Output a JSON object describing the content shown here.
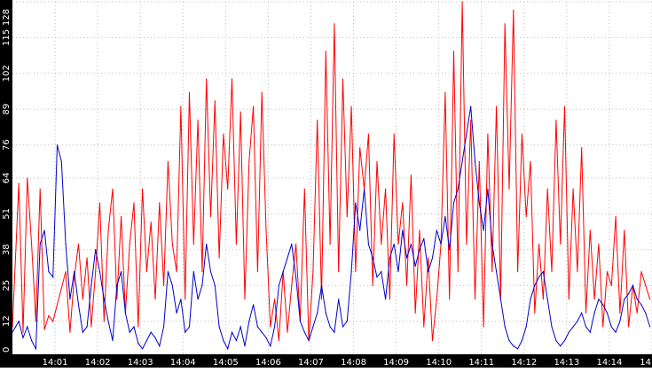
{
  "chart_data": {
    "type": "line",
    "title": "",
    "xlabel": "",
    "ylabel": "",
    "ylim": [
      0,
      128
    ],
    "grid": true,
    "legend": "none",
    "x_ticks": [
      "14:01",
      "14:02",
      "14:03",
      "14:04",
      "14:05",
      "14:06",
      "14:07",
      "14:08",
      "14:09",
      "14:10",
      "14:11",
      "14:12",
      "14:13",
      "14:14",
      "14"
    ],
    "y_ticks": [
      "0",
      "12",
      "25",
      "38",
      "51",
      "64",
      "76",
      "89",
      "102",
      "115",
      "128"
    ],
    "x_range_minutes": [
      0,
      15
    ],
    "series": [
      {
        "color": "#ff0000",
        "x_minutes": [
          0.0,
          0.15,
          0.25,
          0.35,
          0.45,
          0.55,
          0.65,
          0.75,
          0.85,
          0.95,
          1.05,
          1.15,
          1.25,
          1.35,
          1.45,
          1.55,
          1.65,
          1.75,
          1.85,
          1.95,
          2.05,
          2.15,
          2.25,
          2.35,
          2.45,
          2.55,
          2.65,
          2.75,
          2.85,
          2.95,
          3.05,
          3.15,
          3.25,
          3.35,
          3.45,
          3.55,
          3.65,
          3.75,
          3.85,
          3.95,
          4.05,
          4.15,
          4.25,
          4.35,
          4.45,
          4.55,
          4.65,
          4.75,
          4.85,
          4.95,
          5.05,
          5.15,
          5.25,
          5.35,
          5.45,
          5.55,
          5.65,
          5.75,
          5.85,
          5.95,
          6.05,
          6.15,
          6.25,
          6.35,
          6.45,
          6.55,
          6.65,
          6.75,
          6.85,
          6.95,
          7.05,
          7.15,
          7.25,
          7.35,
          7.45,
          7.55,
          7.65,
          7.75,
          7.85,
          7.95,
          8.05,
          8.15,
          8.25,
          8.35,
          8.45,
          8.55,
          8.65,
          8.75,
          8.85,
          8.95,
          9.05,
          9.15,
          9.25,
          9.35,
          9.45,
          9.55,
          9.65,
          9.75,
          9.85,
          9.95,
          10.05,
          10.15,
          10.25,
          10.35,
          10.45,
          10.55,
          10.65,
          10.75,
          10.85,
          10.95,
          11.05,
          11.15,
          11.25,
          11.35,
          11.45,
          11.55,
          11.65,
          11.75,
          11.85,
          11.95,
          12.05,
          12.15,
          12.25,
          12.35,
          12.45,
          12.55,
          12.65,
          12.75,
          12.85,
          12.95,
          13.05,
          13.15,
          13.25,
          13.35,
          13.45,
          13.55,
          13.65,
          13.75,
          13.85,
          13.95,
          14.05,
          14.15,
          14.25,
          14.35,
          14.45,
          14.55,
          14.65,
          14.75,
          14.85,
          14.95
        ],
        "values": [
          10,
          62,
          8,
          64,
          40,
          12,
          60,
          9,
          14,
          12,
          18,
          24,
          30,
          8,
          28,
          40,
          20,
          35,
          10,
          30,
          55,
          12,
          45,
          60,
          20,
          50,
          15,
          40,
          55,
          10,
          60,
          30,
          48,
          20,
          55,
          25,
          70,
          40,
          30,
          90,
          20,
          95,
          40,
          85,
          30,
          100,
          50,
          92,
          35,
          80,
          60,
          100,
          40,
          88,
          20,
          70,
          90,
          30,
          95,
          45,
          10,
          20,
          5,
          30,
          8,
          25,
          40,
          12,
          60,
          5,
          30,
          85,
          20,
          110,
          40,
          120,
          30,
          100,
          50,
          90,
          30,
          75,
          60,
          80,
          25,
          70,
          40,
          60,
          20,
          80,
          40,
          55,
          25,
          65,
          15,
          45,
          10,
          35,
          5,
          20,
          40,
          95,
          20,
          110,
          30,
          128,
          40,
          85,
          20,
          70,
          10,
          80,
          30,
          90,
          20,
          120,
          60,
          125,
          30,
          80,
          50,
          70,
          15,
          40,
          20,
          60,
          30,
          85,
          40,
          90,
          20,
          60,
          30,
          75,
          15,
          45,
          20,
          40,
          10,
          30,
          25,
          50,
          15,
          45,
          10,
          25,
          15,
          30,
          25,
          20
        ]
      },
      {
        "color": "#0000cc",
        "x_minutes": [
          0.0,
          0.15,
          0.25,
          0.35,
          0.45,
          0.55,
          0.65,
          0.75,
          0.85,
          0.95,
          1.05,
          1.15,
          1.25,
          1.35,
          1.45,
          1.55,
          1.65,
          1.75,
          1.85,
          1.95,
          2.05,
          2.15,
          2.25,
          2.35,
          2.45,
          2.55,
          2.65,
          2.75,
          2.85,
          2.95,
          3.05,
          3.15,
          3.25,
          3.35,
          3.45,
          3.55,
          3.65,
          3.75,
          3.85,
          3.95,
          4.05,
          4.15,
          4.25,
          4.35,
          4.45,
          4.55,
          4.65,
          4.75,
          4.85,
          4.95,
          5.05,
          5.15,
          5.25,
          5.35,
          5.45,
          5.55,
          5.65,
          5.75,
          5.85,
          5.95,
          6.05,
          6.15,
          6.25,
          6.35,
          6.45,
          6.55,
          6.65,
          6.75,
          6.85,
          6.95,
          7.05,
          7.15,
          7.25,
          7.35,
          7.45,
          7.55,
          7.65,
          7.75,
          7.85,
          7.95,
          8.05,
          8.15,
          8.25,
          8.35,
          8.45,
          8.55,
          8.65,
          8.75,
          8.85,
          8.95,
          9.05,
          9.15,
          9.25,
          9.35,
          9.45,
          9.55,
          9.65,
          9.75,
          9.85,
          9.95,
          10.05,
          10.15,
          10.25,
          10.35,
          10.45,
          10.55,
          10.65,
          10.75,
          10.85,
          10.95,
          11.05,
          11.15,
          11.25,
          11.35,
          11.45,
          11.55,
          11.65,
          11.75,
          11.85,
          11.95,
          12.05,
          12.15,
          12.25,
          12.35,
          12.45,
          12.55,
          12.65,
          12.75,
          12.85,
          12.95,
          13.05,
          13.15,
          13.25,
          13.35,
          13.45,
          13.55,
          13.65,
          13.75,
          13.85,
          13.95,
          14.05,
          14.15,
          14.25,
          14.35,
          14.45,
          14.55,
          14.65,
          14.75,
          14.85,
          14.95
        ],
        "values": [
          8,
          12,
          6,
          10,
          5,
          2,
          40,
          45,
          30,
          28,
          76,
          70,
          40,
          20,
          30,
          18,
          8,
          10,
          25,
          38,
          30,
          20,
          12,
          5,
          25,
          30,
          15,
          8,
          10,
          4,
          2,
          5,
          8,
          6,
          3,
          10,
          30,
          25,
          15,
          20,
          8,
          10,
          30,
          20,
          25,
          40,
          30,
          25,
          10,
          5,
          2,
          8,
          5,
          10,
          3,
          12,
          18,
          10,
          8,
          6,
          3,
          10,
          25,
          30,
          35,
          40,
          28,
          12,
          8,
          5,
          10,
          15,
          25,
          15,
          10,
          8,
          20,
          10,
          12,
          30,
          55,
          45,
          60,
          40,
          35,
          28,
          30,
          20,
          35,
          40,
          30,
          45,
          35,
          40,
          32,
          38,
          42,
          30,
          35,
          45,
          40,
          50,
          38,
          55,
          60,
          70,
          80,
          90,
          70,
          55,
          45,
          60,
          40,
          30,
          20,
          10,
          5,
          3,
          2,
          5,
          10,
          20,
          25,
          28,
          30,
          20,
          10,
          5,
          3,
          5,
          8,
          10,
          12,
          15,
          10,
          8,
          15,
          20,
          18,
          15,
          10,
          8,
          12,
          20,
          22,
          25,
          20,
          18,
          15,
          10
        ]
      }
    ]
  }
}
